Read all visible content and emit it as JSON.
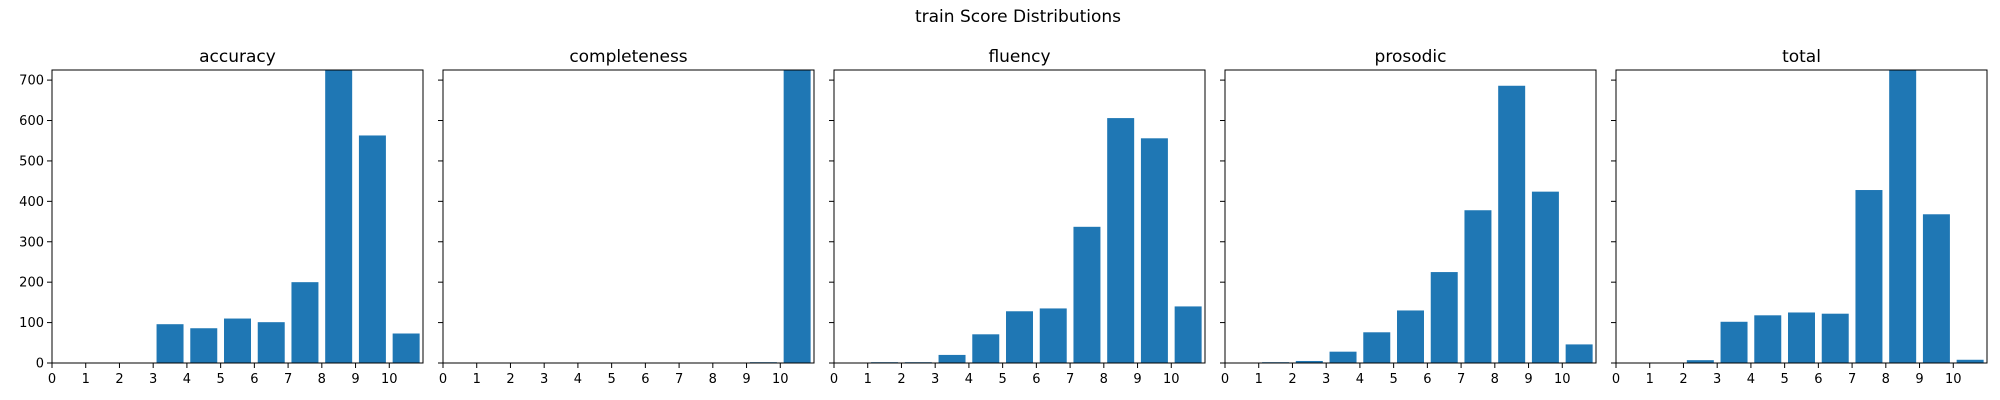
{
  "figure_title": "train Score Distributions",
  "colors": {
    "bar": "#1f77b4",
    "axes": "#000000",
    "background": "#ffffff"
  },
  "chart_data": [
    {
      "type": "bar",
      "title": "accuracy",
      "categories": [
        0,
        1,
        2,
        3,
        4,
        5,
        6,
        7,
        8,
        9,
        10
      ],
      "values": [
        0,
        0,
        0,
        96,
        86,
        110,
        101,
        200,
        730,
        563,
        73
      ],
      "xlim": [
        0,
        11
      ],
      "ylim": [
        0,
        725
      ],
      "yticks": [
        0,
        100,
        200,
        300,
        400,
        500,
        600,
        700
      ],
      "show_ytick_labels": true
    },
    {
      "type": "bar",
      "title": "completeness",
      "categories": [
        0,
        1,
        2,
        3,
        4,
        5,
        6,
        7,
        8,
        9,
        10
      ],
      "values": [
        0,
        0,
        0,
        0,
        0,
        0,
        0,
        0,
        0,
        2,
        730
      ],
      "xlim": [
        0,
        11
      ],
      "ylim": [
        0,
        725
      ],
      "yticks": [
        0,
        100,
        200,
        300,
        400,
        500,
        600,
        700
      ],
      "show_ytick_labels": false
    },
    {
      "type": "bar",
      "title": "fluency",
      "categories": [
        0,
        1,
        2,
        3,
        4,
        5,
        6,
        7,
        8,
        9,
        10
      ],
      "values": [
        0,
        2,
        2,
        20,
        71,
        128,
        135,
        337,
        606,
        556,
        140
      ],
      "xlim": [
        0,
        11
      ],
      "ylim": [
        0,
        725
      ],
      "yticks": [
        0,
        100,
        200,
        300,
        400,
        500,
        600,
        700
      ],
      "show_ytick_labels": false
    },
    {
      "type": "bar",
      "title": "prosodic",
      "categories": [
        0,
        1,
        2,
        3,
        4,
        5,
        6,
        7,
        8,
        9,
        10
      ],
      "values": [
        0,
        2,
        5,
        28,
        76,
        130,
        225,
        378,
        686,
        424,
        46
      ],
      "xlim": [
        0,
        11
      ],
      "ylim": [
        0,
        725
      ],
      "yticks": [
        0,
        100,
        200,
        300,
        400,
        500,
        600,
        700
      ],
      "show_ytick_labels": false
    },
    {
      "type": "bar",
      "title": "total",
      "categories": [
        0,
        1,
        2,
        3,
        4,
        5,
        6,
        7,
        8,
        9,
        10
      ],
      "values": [
        0,
        0,
        7,
        102,
        118,
        125,
        122,
        428,
        730,
        368,
        8
      ],
      "xlim": [
        0,
        11
      ],
      "ylim": [
        0,
        725
      ],
      "yticks": [
        0,
        100,
        200,
        300,
        400,
        500,
        600,
        700
      ],
      "show_ytick_labels": false
    }
  ]
}
